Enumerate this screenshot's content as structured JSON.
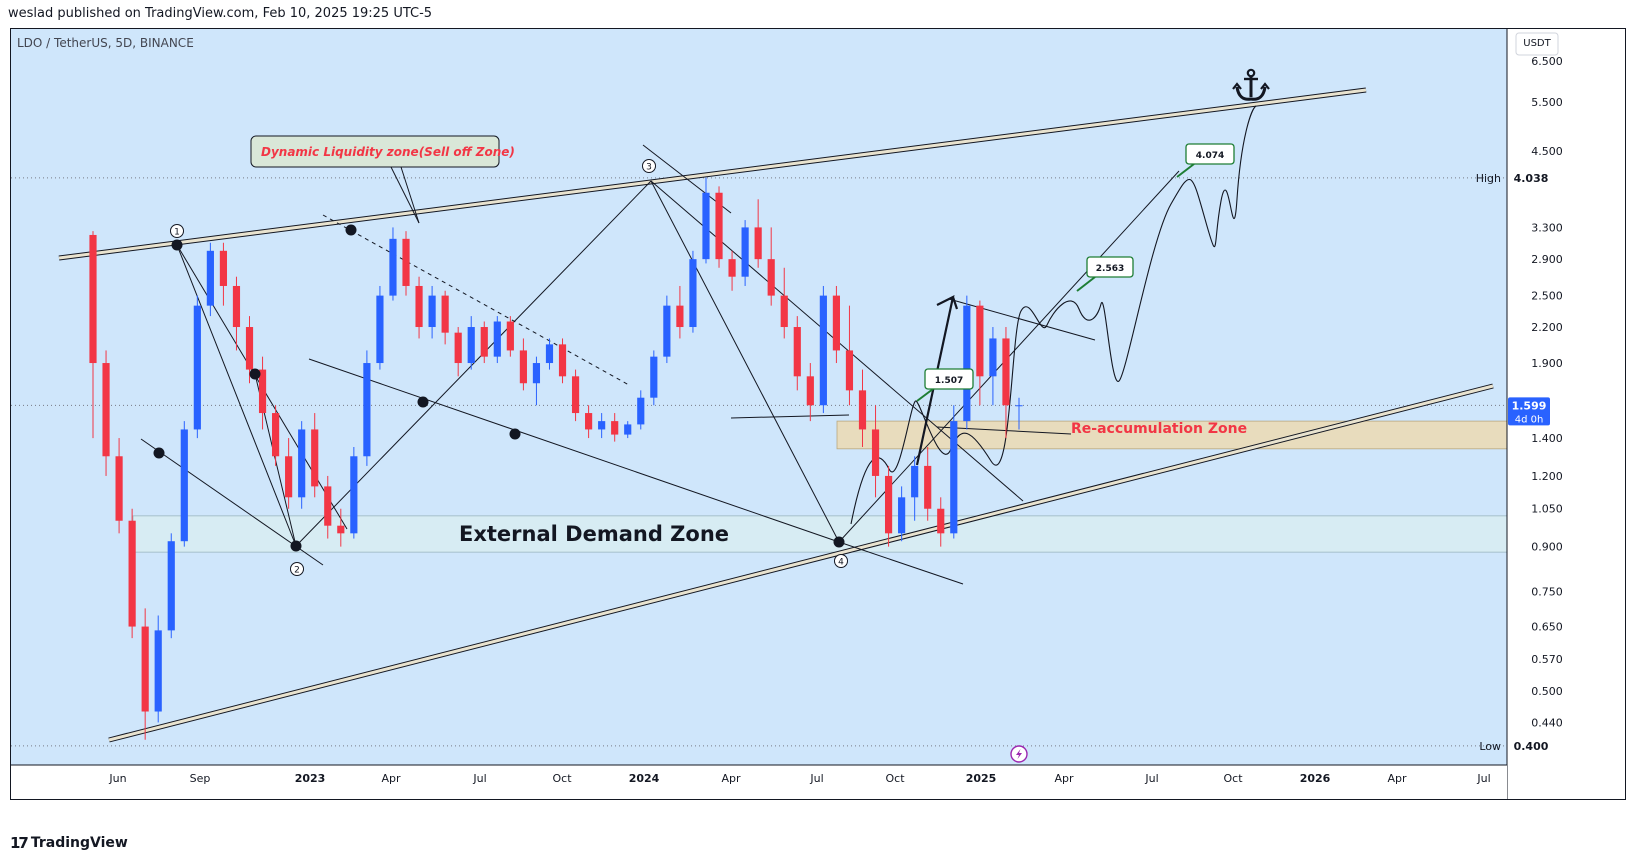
{
  "publisher_line": "weslad published on TradingView.com, Feb 10, 2025 19:25 UTC-5",
  "symbol_line": "LDO / TetherUS, 5D, BINANCE",
  "brand": {
    "logo": "17",
    "name": "TradingView"
  },
  "colors": {
    "background": "#cfe6fb",
    "candle_up": "#2962ff",
    "candle_down": "#f23645",
    "reaccum_zone": "#e8dcbd",
    "demand_zone": "#d7ecf3",
    "annotation_red": "#f23645",
    "level_box_green": "#1e7e34",
    "price_label_bg": "#2962ff"
  },
  "chart_data": {
    "type": "candlestick",
    "x_ticks": [
      "Jun",
      "Sep",
      "2023",
      "Apr",
      "Jul",
      "Oct",
      "2024",
      "Apr",
      "Jul",
      "Oct",
      "2025",
      "Apr",
      "Jul",
      "Oct",
      "2026",
      "Apr",
      "Jul"
    ],
    "y_ticks": [
      "6.500",
      "5.500",
      "4.500",
      "4.038",
      "3.300",
      "2.900",
      "2.500",
      "2.200",
      "1.900",
      "1.599",
      "1.400",
      "1.200",
      "1.050",
      "0.900",
      "0.750",
      "0.650",
      "0.570",
      "0.500",
      "0.440",
      "0.400"
    ],
    "y_axis_unit": "USDT",
    "y_scale": "log",
    "ylim": [
      0.37,
      7.4
    ],
    "current_price": {
      "value": "1.599",
      "countdown": "4d 0h"
    },
    "high_marker": {
      "label": "High",
      "value": "4.038"
    },
    "low_marker": {
      "label": "Low",
      "value": "0.400"
    },
    "zones": [
      {
        "name": "Re-accumulation Zone",
        "low": 1.34,
        "high": 1.5
      },
      {
        "name": "External Demand Zone",
        "low": 0.88,
        "high": 1.02
      }
    ],
    "annotations": {
      "liquidity_zone_label": "Dynamic Liquidity zone(Sell off Zone)",
      "reaccum_label": "Re-accumulation Zone",
      "demand_label": "External Demand Zone",
      "target_boxes": [
        "1.507",
        "2.563",
        "4.074"
      ],
      "pivot_numbers": [
        "1",
        "2",
        "3",
        "4"
      ],
      "target_icon": "anchor-icon",
      "lightning_icon": "lightning-icon"
    },
    "ohlc": [
      [
        3.2,
        3.25,
        1.4,
        1.9
      ],
      [
        1.9,
        2.0,
        1.2,
        1.3
      ],
      [
        1.3,
        1.4,
        0.95,
        1.0
      ],
      [
        1.0,
        1.05,
        0.62,
        0.65
      ],
      [
        0.65,
        0.7,
        0.41,
        0.46
      ],
      [
        0.46,
        0.68,
        0.44,
        0.64
      ],
      [
        0.64,
        0.95,
        0.62,
        0.92
      ],
      [
        0.92,
        1.5,
        0.9,
        1.45
      ],
      [
        1.45,
        2.5,
        1.4,
        2.4
      ],
      [
        2.4,
        3.1,
        2.3,
        3.0
      ],
      [
        3.0,
        3.1,
        2.4,
        2.6
      ],
      [
        2.6,
        2.7,
        2.0,
        2.2
      ],
      [
        2.2,
        2.3,
        1.75,
        1.85
      ],
      [
        1.85,
        1.95,
        1.45,
        1.55
      ],
      [
        1.55,
        1.6,
        1.25,
        1.3
      ],
      [
        1.3,
        1.4,
        1.05,
        1.1
      ],
      [
        1.1,
        1.5,
        1.05,
        1.45
      ],
      [
        1.45,
        1.55,
        1.1,
        1.15
      ],
      [
        1.15,
        1.2,
        0.93,
        0.98
      ],
      [
        0.98,
        1.05,
        0.9,
        0.95
      ],
      [
        0.95,
        1.35,
        0.93,
        1.3
      ],
      [
        1.3,
        2.0,
        1.25,
        1.9
      ],
      [
        1.9,
        2.6,
        1.85,
        2.5
      ],
      [
        2.5,
        3.3,
        2.45,
        3.15
      ],
      [
        3.15,
        3.25,
        2.5,
        2.6
      ],
      [
        2.6,
        2.7,
        2.1,
        2.2
      ],
      [
        2.2,
        2.6,
        2.1,
        2.5
      ],
      [
        2.5,
        2.55,
        2.05,
        2.15
      ],
      [
        2.15,
        2.2,
        1.8,
        1.9
      ],
      [
        1.9,
        2.3,
        1.85,
        2.2
      ],
      [
        2.2,
        2.25,
        1.9,
        1.95
      ],
      [
        1.95,
        2.3,
        1.9,
        2.25
      ],
      [
        2.25,
        2.3,
        1.95,
        2.0
      ],
      [
        2.0,
        2.1,
        1.7,
        1.75
      ],
      [
        1.75,
        1.95,
        1.6,
        1.9
      ],
      [
        1.9,
        2.1,
        1.85,
        2.05
      ],
      [
        2.05,
        2.1,
        1.75,
        1.8
      ],
      [
        1.8,
        1.85,
        1.5,
        1.55
      ],
      [
        1.55,
        1.6,
        1.4,
        1.45
      ],
      [
        1.45,
        1.55,
        1.4,
        1.5
      ],
      [
        1.5,
        1.55,
        1.38,
        1.42
      ],
      [
        1.42,
        1.5,
        1.4,
        1.48
      ],
      [
        1.48,
        1.7,
        1.45,
        1.65
      ],
      [
        1.65,
        2.0,
        1.6,
        1.95
      ],
      [
        1.95,
        2.5,
        1.9,
        2.4
      ],
      [
        2.4,
        2.6,
        2.1,
        2.2
      ],
      [
        2.2,
        3.0,
        2.15,
        2.9
      ],
      [
        2.9,
        4.04,
        2.85,
        3.8
      ],
      [
        3.8,
        3.9,
        2.8,
        2.9
      ],
      [
        2.9,
        3.0,
        2.55,
        2.7
      ],
      [
        2.7,
        3.4,
        2.6,
        3.3
      ],
      [
        3.3,
        3.7,
        2.8,
        2.9
      ],
      [
        2.9,
        3.3,
        2.4,
        2.5
      ],
      [
        2.5,
        2.8,
        2.1,
        2.2
      ],
      [
        2.2,
        2.3,
        1.7,
        1.8
      ],
      [
        1.8,
        1.9,
        1.5,
        1.6
      ],
      [
        1.6,
        2.6,
        1.55,
        2.5
      ],
      [
        2.5,
        2.6,
        1.9,
        2.0
      ],
      [
        2.0,
        2.4,
        1.6,
        1.7
      ],
      [
        1.7,
        1.85,
        1.35,
        1.45
      ],
      [
        1.45,
        1.6,
        1.1,
        1.2
      ],
      [
        1.2,
        1.25,
        0.9,
        0.95
      ],
      [
        0.95,
        1.15,
        0.92,
        1.1
      ],
      [
        1.1,
        1.3,
        1.0,
        1.25
      ],
      [
        1.25,
        1.35,
        1.0,
        1.05
      ],
      [
        1.05,
        1.1,
        0.9,
        0.95
      ],
      [
        0.95,
        1.6,
        0.93,
        1.5
      ],
      [
        1.5,
        2.5,
        1.45,
        2.4
      ],
      [
        2.4,
        2.45,
        1.6,
        1.8
      ],
      [
        1.8,
        2.2,
        1.6,
        2.1
      ],
      [
        2.1,
        2.2,
        1.4,
        1.6
      ],
      [
        1.6,
        1.65,
        1.45,
        1.6
      ]
    ]
  }
}
